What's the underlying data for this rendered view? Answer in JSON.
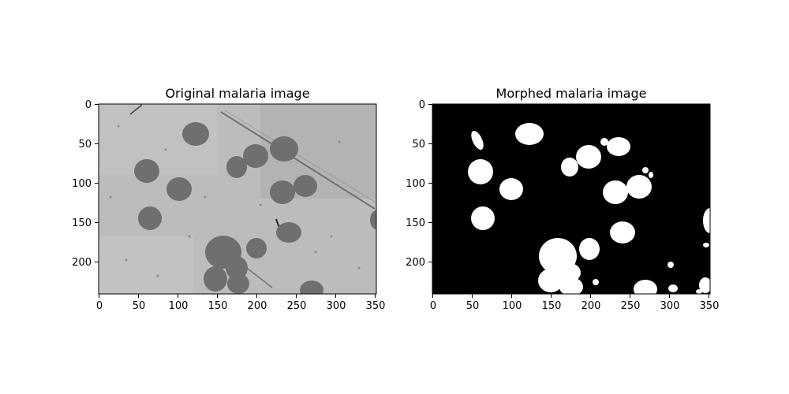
{
  "figure": {
    "panels": [
      {
        "title": "Original malaria image",
        "x_ticks": [
          "0",
          "50",
          "100",
          "150",
          "200",
          "250",
          "300",
          "350"
        ],
        "y_ticks": [
          "0",
          "50",
          "100",
          "150",
          "200"
        ],
        "image_type": "grayscale-microscopy"
      },
      {
        "title": "Morphed malaria image",
        "x_ticks": [
          "0",
          "50",
          "100",
          "150",
          "200",
          "250",
          "300",
          "350"
        ],
        "y_ticks": [
          "0",
          "50",
          "100",
          "150",
          "200"
        ],
        "image_type": "binary-mask"
      }
    ]
  },
  "colors": {
    "original_background": "#b9b9b9",
    "cell": "#6e6e6e",
    "mask_background": "#000000",
    "mask_blob": "#ffffff"
  }
}
